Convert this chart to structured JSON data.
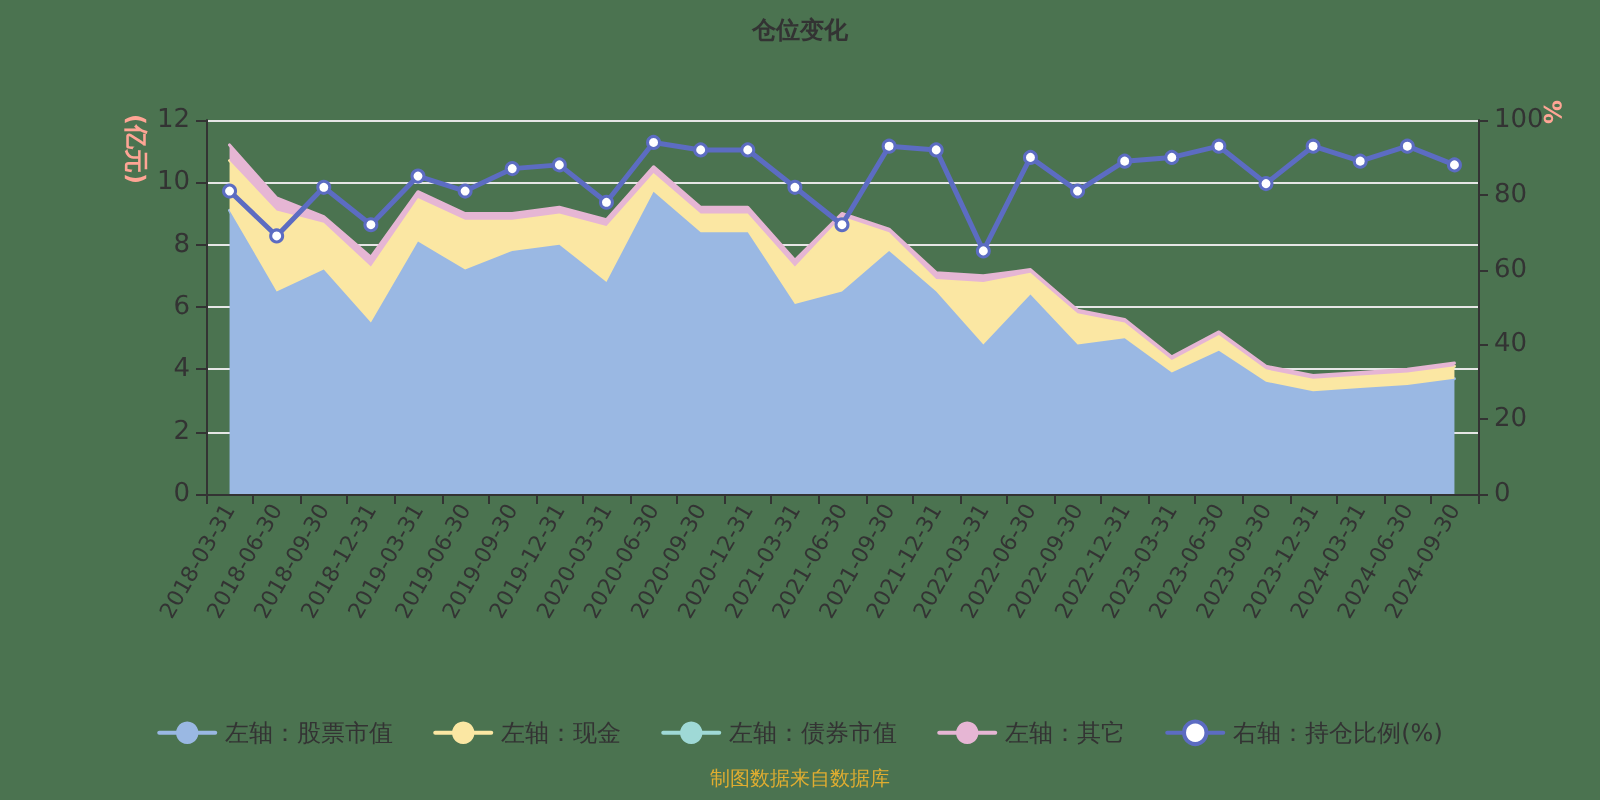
{
  "chart_data": {
    "type": "area",
    "title": "仓位变化",
    "ylabel": "(亿元)",
    "y2label": "%",
    "stacked": true,
    "legend": "bottom",
    "grid": "y",
    "categories": [
      "2018-03-31",
      "2018-06-30",
      "2018-09-30",
      "2018-12-31",
      "2019-03-31",
      "2019-06-30",
      "2019-09-30",
      "2019-12-31",
      "2020-03-31",
      "2020-06-30",
      "2020-09-30",
      "2020-12-31",
      "2021-03-31",
      "2021-06-30",
      "2021-09-30",
      "2021-12-31",
      "2022-03-31",
      "2022-06-30",
      "2022-09-30",
      "2022-12-31",
      "2023-03-31",
      "2023-06-30",
      "2023-09-30",
      "2023-12-31",
      "2024-03-31",
      "2024-06-30",
      "2024-09-30"
    ],
    "ylim": [
      0,
      12
    ],
    "yticks": [
      0,
      2,
      4,
      6,
      8,
      10,
      12
    ],
    "y2lim": [
      0,
      100
    ],
    "y2ticks": [
      0,
      20,
      40,
      60,
      80,
      100
    ],
    "series": [
      {
        "name": "左轴：股票市值",
        "marker": "none",
        "color": "#9ab8e3",
        "values": [
          9.1,
          6.5,
          7.2,
          5.5,
          8.1,
          7.2,
          7.8,
          8.0,
          6.8,
          9.7,
          8.4,
          8.4,
          6.1,
          6.5,
          7.8,
          6.5,
          4.8,
          6.4,
          4.8,
          5.0,
          3.9,
          4.6,
          3.6,
          3.3,
          3.4,
          3.5,
          3.7
        ]
      },
      {
        "name": "左轴：现金",
        "marker": "none",
        "color": "#fbe7a3",
        "values": [
          1.6,
          2.6,
          1.5,
          1.8,
          1.4,
          1.6,
          1.0,
          1.0,
          1.8,
          0.6,
          0.6,
          0.6,
          1.2,
          2.4,
          0.6,
          0.4,
          2.0,
          0.7,
          1.0,
          0.5,
          0.4,
          0.5,
          0.4,
          0.4,
          0.4,
          0.4,
          0.4
        ]
      },
      {
        "name": "左轴：债券市值",
        "marker": "none",
        "color": "#9fd9d6",
        "values": [
          null,
          null,
          null,
          null,
          null,
          null,
          null,
          null,
          null,
          null,
          null,
          null,
          null,
          null,
          null,
          null,
          null,
          null,
          null,
          null,
          null,
          null,
          null,
          null,
          null,
          null,
          null
        ]
      },
      {
        "name": "左轴：其它",
        "marker": "none",
        "color": "#e6b6d4",
        "values": [
          0.5,
          0.4,
          0.2,
          0.3,
          0.2,
          0.2,
          0.2,
          0.2,
          0.2,
          0.2,
          0.2,
          0.2,
          0.2,
          0.1,
          0.1,
          0.2,
          0.2,
          0.1,
          0.1,
          0.1,
          0.1,
          0.1,
          0.1,
          0.1,
          0.1,
          0.1,
          0.1
        ]
      },
      {
        "name": "右轴：持仓比例(%)",
        "type": "line",
        "axis": "y2",
        "marker": "circle",
        "color": "#5c6cc2",
        "values": [
          81,
          69,
          82,
          72,
          85,
          81,
          87,
          88,
          78,
          94,
          92,
          92,
          82,
          72,
          93,
          92,
          65,
          90,
          81,
          89,
          90,
          93,
          83,
          93,
          89,
          93,
          88
        ]
      }
    ],
    "annotations": [
      "制图数据来自数据库"
    ]
  }
}
